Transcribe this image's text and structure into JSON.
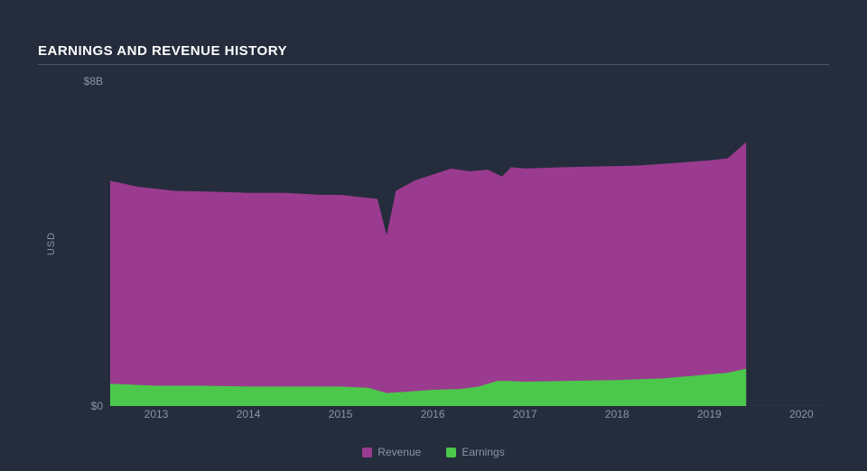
{
  "chart": {
    "type": "area",
    "title": "EARNINGS AND REVENUE HISTORY",
    "background_color": "#252d3d",
    "title_color": "#ffffff",
    "axis_label_color": "#8b94a8",
    "axis_line_color": "#4a5468",
    "y_axis": {
      "title": "USD",
      "min": 0,
      "max": 8,
      "ticks": [
        {
          "value": 0,
          "label": "$0"
        },
        {
          "value": 8,
          "label": "$8B"
        }
      ]
    },
    "x_axis": {
      "min": 2012.5,
      "max": 2020.3,
      "ticks": [
        2013,
        2014,
        2015,
        2016,
        2017,
        2018,
        2019,
        2020
      ]
    },
    "series": [
      {
        "name": "Revenue",
        "color": "#9b3b8f",
        "points": [
          [
            2012.5,
            5.55
          ],
          [
            2012.8,
            5.4
          ],
          [
            2013.2,
            5.3
          ],
          [
            2013.6,
            5.28
          ],
          [
            2014.0,
            5.25
          ],
          [
            2014.4,
            5.25
          ],
          [
            2014.8,
            5.2
          ],
          [
            2015.0,
            5.2
          ],
          [
            2015.2,
            5.15
          ],
          [
            2015.4,
            5.1
          ],
          [
            2015.5,
            4.2
          ],
          [
            2015.6,
            5.3
          ],
          [
            2015.8,
            5.55
          ],
          [
            2016.0,
            5.7
          ],
          [
            2016.2,
            5.85
          ],
          [
            2016.4,
            5.78
          ],
          [
            2016.6,
            5.82
          ],
          [
            2016.75,
            5.65
          ],
          [
            2016.85,
            5.88
          ],
          [
            2017.0,
            5.85
          ],
          [
            2017.4,
            5.88
          ],
          [
            2017.8,
            5.9
          ],
          [
            2018.2,
            5.92
          ],
          [
            2018.6,
            5.98
          ],
          [
            2019.0,
            6.05
          ],
          [
            2019.2,
            6.1
          ],
          [
            2019.4,
            6.5
          ],
          [
            2019.4,
            0.0
          ]
        ]
      },
      {
        "name": "Earnings",
        "color": "#4bc84b",
        "points": [
          [
            2012.5,
            0.55
          ],
          [
            2013.0,
            0.5
          ],
          [
            2013.5,
            0.5
          ],
          [
            2014.0,
            0.48
          ],
          [
            2014.5,
            0.48
          ],
          [
            2015.0,
            0.48
          ],
          [
            2015.3,
            0.45
          ],
          [
            2015.5,
            0.32
          ],
          [
            2015.7,
            0.35
          ],
          [
            2016.0,
            0.4
          ],
          [
            2016.3,
            0.42
          ],
          [
            2016.5,
            0.48
          ],
          [
            2016.7,
            0.62
          ],
          [
            2016.8,
            0.62
          ],
          [
            2017.0,
            0.6
          ],
          [
            2017.5,
            0.62
          ],
          [
            2018.0,
            0.64
          ],
          [
            2018.5,
            0.68
          ],
          [
            2019.0,
            0.78
          ],
          [
            2019.2,
            0.82
          ],
          [
            2019.4,
            0.92
          ],
          [
            2019.4,
            0.0
          ]
        ]
      }
    ],
    "legend_items": [
      {
        "label": "Revenue",
        "color": "#9b3b8f"
      },
      {
        "label": "Earnings",
        "color": "#4bc84b"
      }
    ]
  }
}
